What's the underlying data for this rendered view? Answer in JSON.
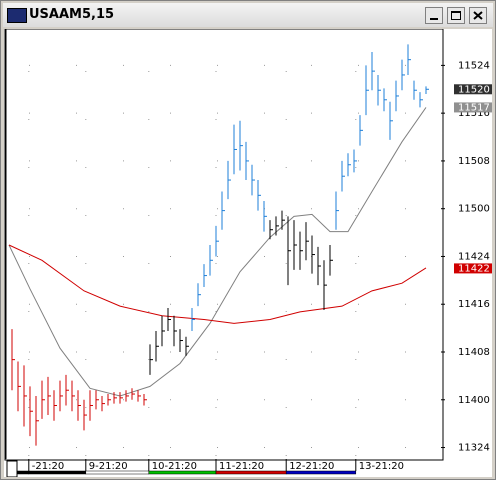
{
  "window_title": "USAAM5,15",
  "chart_data": {
    "type": "ohlc",
    "xlim": [
      -0.5,
      71.5
    ],
    "xticks": [
      {
        "value": 2.8,
        "label": "-21:20"
      },
      {
        "value": 12.3,
        "label": "9-21:20"
      },
      {
        "value": 22.8,
        "label": "10-21:20"
      },
      {
        "value": 34,
        "label": "11-21:20"
      },
      {
        "value": 45.7,
        "label": "12-21:20"
      },
      {
        "value": 57.3,
        "label": "13-21:20"
      }
    ],
    "period_colors": [
      "#000000",
      "#000000",
      "#ffffff",
      "#00c000",
      "#d00000",
      "#0000c0"
    ],
    "ylim": [
      113.69,
      115.93
    ],
    "yticks": [
      {
        "value": 113.75,
        "label": "11324"
      },
      {
        "value": 114,
        "label": "11400"
      },
      {
        "value": 114.25,
        "label": "11408"
      },
      {
        "value": 114.5,
        "label": "11416"
      },
      {
        "value": 114.75,
        "label": "11424"
      },
      {
        "value": 115,
        "label": "11500"
      },
      {
        "value": 115.25,
        "label": "11508"
      },
      {
        "value": 115.5,
        "label": "11516"
      },
      {
        "value": 115.75,
        "label": "11524"
      }
    ],
    "grid": true,
    "series": [
      {
        "color": "#d00000",
        "x": [
          0,
          1,
          2,
          3,
          4,
          5,
          6,
          7,
          8,
          9,
          10,
          11,
          12,
          13,
          14,
          15,
          16,
          17,
          18,
          19,
          20,
          21,
          22
        ],
        "high": [
          114.37,
          114.2,
          114.18,
          114.07,
          114.02,
          114.1,
          114.12,
          114.05,
          114.1,
          114.13,
          114.1,
          114.05,
          114.0,
          114.05,
          114.05,
          114.02,
          114.03,
          114.04,
          114.04,
          114.05,
          114.06,
          114.05,
          114.03
        ],
        "low": [
          114.05,
          113.94,
          113.86,
          113.81,
          113.76,
          113.9,
          113.92,
          113.89,
          113.94,
          113.97,
          113.94,
          113.89,
          113.84,
          113.89,
          113.95,
          113.94,
          113.97,
          113.98,
          113.98,
          113.99,
          114.0,
          113.99,
          113.97
        ],
        "close": [
          114.21,
          114.07,
          114.02,
          113.94,
          113.89,
          114.0,
          114.02,
          113.97,
          114.02,
          114.05,
          114.02,
          113.97,
          113.92,
          113.97,
          114.0,
          113.98,
          114.0,
          114.01,
          114.01,
          114.02,
          114.03,
          114.02,
          114.0
        ]
      },
      {
        "color": "#000000",
        "x": [
          23,
          24,
          25,
          26,
          27,
          28,
          29
        ],
        "high": [
          114.29,
          114.36,
          114.44,
          114.48,
          114.44,
          114.37,
          114.33
        ],
        "low": [
          114.13,
          114.2,
          114.28,
          114.36,
          114.28,
          114.25,
          114.23
        ],
        "close": [
          114.21,
          114.28,
          114.36,
          114.42,
          114.36,
          114.31,
          114.28
        ]
      },
      {
        "color": "#1e7fd8",
        "x": [
          30,
          31,
          32,
          33,
          34,
          35,
          36,
          37,
          38,
          39,
          40,
          41,
          42
        ],
        "high": [
          114.48,
          114.61,
          114.71,
          114.81,
          114.91,
          115.09,
          115.25,
          115.44,
          115.46,
          115.35,
          115.23,
          115.15,
          115.04
        ],
        "low": [
          114.36,
          114.49,
          114.59,
          114.65,
          114.75,
          114.89,
          115.05,
          115.18,
          115.2,
          115.15,
          115.07,
          114.99,
          114.88
        ],
        "close": [
          114.42,
          114.55,
          114.65,
          114.73,
          114.83,
          114.99,
          115.15,
          115.31,
          115.33,
          115.25,
          115.15,
          115.07,
          114.96
        ]
      },
      {
        "color": "#000000",
        "x": [
          43,
          44,
          45,
          46,
          47,
          48,
          49,
          50,
          51,
          52,
          53
        ],
        "high": [
          114.94,
          114.96,
          114.99,
          114.96,
          114.94,
          114.88,
          114.93,
          114.86,
          114.8,
          114.73,
          114.81
        ],
        "low": [
          114.84,
          114.86,
          114.89,
          114.6,
          114.68,
          114.68,
          114.73,
          114.66,
          114.6,
          114.47,
          114.65
        ],
        "close": [
          114.89,
          114.91,
          114.94,
          114.78,
          114.81,
          114.78,
          114.83,
          114.76,
          114.7,
          114.6,
          114.73
        ]
      },
      {
        "color": "#1e7fd8",
        "x": [
          54,
          55,
          56,
          57,
          58,
          59,
          60,
          61,
          62,
          63,
          64,
          65,
          66,
          67,
          68,
          69
        ],
        "high": [
          115.09,
          115.25,
          115.29,
          115.31,
          115.49,
          115.75,
          115.82,
          115.7,
          115.63,
          115.56,
          115.67,
          115.78,
          115.86,
          115.67,
          115.61,
          115.64
        ],
        "low": [
          114.89,
          115.09,
          115.17,
          115.19,
          115.33,
          115.49,
          115.62,
          115.54,
          115.51,
          115.36,
          115.51,
          115.62,
          115.7,
          115.57,
          115.53,
          115.6
        ],
        "close": [
          114.99,
          115.17,
          115.23,
          115.25,
          115.41,
          115.62,
          115.72,
          115.62,
          115.57,
          115.46,
          115.59,
          115.7,
          115.78,
          115.62,
          115.57,
          115.625
        ]
      }
    ],
    "lines": [
      {
        "color": "#808080",
        "x": [
          -0.5,
          3,
          8,
          13,
          18,
          23,
          28,
          33,
          38,
          43,
          47,
          50,
          53,
          56,
          60,
          65,
          69
        ],
        "values": [
          114.81,
          114.58,
          114.27,
          114.06,
          114.02,
          114.07,
          114.19,
          114.4,
          114.67,
          114.85,
          114.96,
          114.97,
          114.88,
          114.88,
          115.09,
          115.35,
          115.53
        ]
      },
      {
        "color": "#d00000",
        "x": [
          -0.5,
          5,
          12,
          18,
          25,
          32,
          37,
          43,
          48,
          55,
          60,
          65,
          69
        ],
        "values": [
          114.81,
          114.73,
          114.57,
          114.49,
          114.44,
          114.42,
          114.4,
          114.42,
          114.46,
          114.49,
          114.57,
          114.61,
          114.69
        ]
      }
    ],
    "price_markers": [
      {
        "value": 115.625,
        "label": "11520",
        "color": "#303030"
      },
      {
        "value": 115.53,
        "label": "11517",
        "color": "#909090"
      },
      {
        "value": 114.6875,
        "label": "11422",
        "color": "#d00000"
      }
    ]
  }
}
